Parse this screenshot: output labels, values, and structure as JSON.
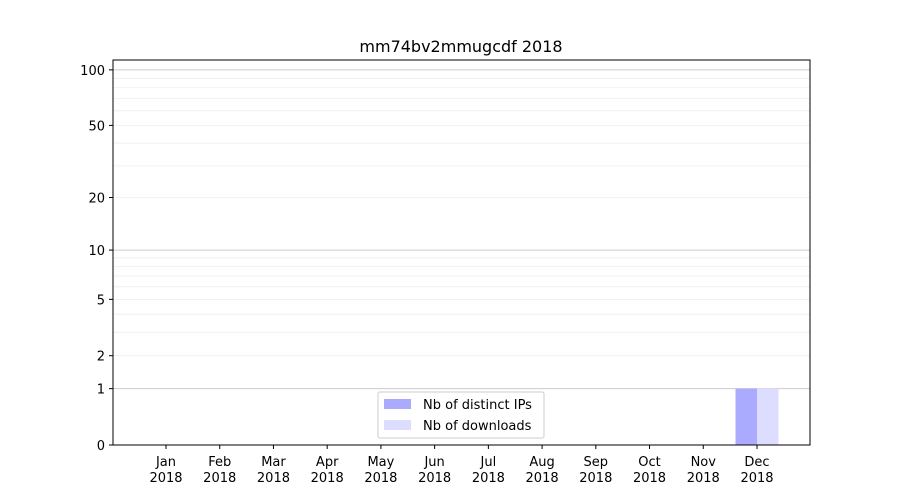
{
  "chart_data": {
    "type": "bar",
    "title": "mm74bv2mmugcdf 2018",
    "xlabel": "",
    "ylabel": "",
    "yscale": "log(1+y)",
    "ylim": [
      0,
      113
    ],
    "yticks": [
      0,
      1,
      2,
      5,
      10,
      20,
      50,
      100
    ],
    "grid": true,
    "legend_position": "bottom-center",
    "categories": [
      "Jan\n2018",
      "Feb\n2018",
      "Mar\n2018",
      "Apr\n2018",
      "May\n2018",
      "Jun\n2018",
      "Jul\n2018",
      "Aug\n2018",
      "Sep\n2018",
      "Oct\n2018",
      "Nov\n2018",
      "Dec\n2018"
    ],
    "series": [
      {
        "name": "Nb of distinct IPs",
        "color": "#aaaaff",
        "values": [
          0,
          0,
          0,
          0,
          0,
          0,
          0,
          0,
          0,
          0,
          0,
          1
        ]
      },
      {
        "name": "Nb of downloads",
        "color": "#ddddff",
        "values": [
          0,
          0,
          0,
          0,
          0,
          0,
          0,
          0,
          0,
          0,
          0,
          1
        ]
      }
    ]
  }
}
